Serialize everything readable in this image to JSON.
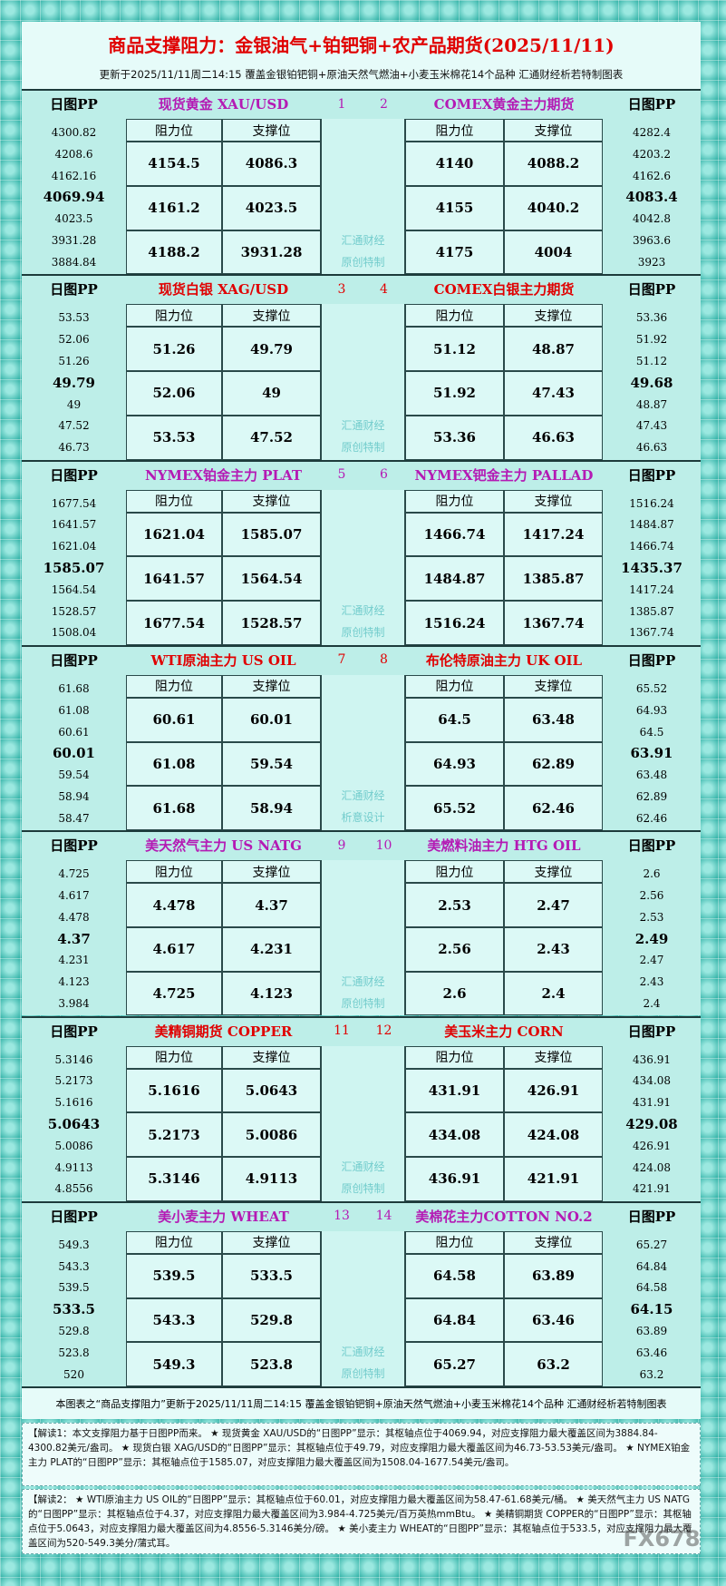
{
  "header": {
    "title": "商品支撑阻力：金银油气+铂钯铜+农产品期货(2025/11/11)",
    "subtitle": "更新于2025/11/11周二14:15 覆盖金银铂钯铜+原油天然气燃油+小麦玉米棉花14个品种 汇通财经析若特制图表"
  },
  "blocks": [
    {
      "watermark": [
        "汇通财经",
        "原创特制"
      ],
      "left": {
        "pp_label": "日图PP",
        "name": "现货黄金 XAU/USD",
        "index": "1",
        "res_label": "阻力位",
        "sup_label": "支撑位",
        "pp": [
          "4300.82",
          "4208.6",
          "4162.16",
          "4069.94",
          "4023.5",
          "3931.28",
          "3884.84"
        ],
        "resistance": [
          "4154.5",
          "4161.2",
          "4188.2"
        ],
        "support": [
          "4086.3",
          "4023.5",
          "3931.28"
        ]
      },
      "right": {
        "pp_label": "日图PP",
        "name": "COMEX黄金主力期货",
        "index": "2",
        "res_label": "阻力位",
        "sup_label": "支撑位",
        "pp": [
          "4282.4",
          "4203.2",
          "4162.6",
          "4083.4",
          "4042.8",
          "3963.6",
          "3923"
        ],
        "resistance": [
          "4140",
          "4155",
          "4175"
        ],
        "support": [
          "4088.2",
          "4040.2",
          "4004"
        ]
      }
    },
    {
      "watermark": [
        "汇通财经",
        "原创特制"
      ],
      "left": {
        "pp_label": "日图PP",
        "name": "现货白银 XAG/USD",
        "index": "3",
        "res_label": "阻力位",
        "sup_label": "支撑位",
        "pp": [
          "53.53",
          "52.06",
          "51.26",
          "49.79",
          "49",
          "47.52",
          "46.73"
        ],
        "resistance": [
          "51.26",
          "52.06",
          "53.53"
        ],
        "support": [
          "49.79",
          "49",
          "47.52"
        ]
      },
      "right": {
        "pp_label": "日图PP",
        "name": "COMEX白银主力期货",
        "index": "4",
        "res_label": "阻力位",
        "sup_label": "支撑位",
        "pp": [
          "53.36",
          "51.92",
          "51.12",
          "49.68",
          "48.87",
          "47.43",
          "46.63"
        ],
        "resistance": [
          "51.12",
          "51.92",
          "53.36"
        ],
        "support": [
          "48.87",
          "47.43",
          "46.63"
        ]
      }
    },
    {
      "watermark": [
        "汇通财经",
        "原创特制"
      ],
      "left": {
        "pp_label": "日图PP",
        "name": "NYMEX铂金主力 PLAT",
        "index": "5",
        "res_label": "阻力位",
        "sup_label": "支撑位",
        "pp": [
          "1677.54",
          "1641.57",
          "1621.04",
          "1585.07",
          "1564.54",
          "1528.57",
          "1508.04"
        ],
        "resistance": [
          "1621.04",
          "1641.57",
          "1677.54"
        ],
        "support": [
          "1585.07",
          "1564.54",
          "1528.57"
        ]
      },
      "right": {
        "pp_label": "日图PP",
        "name": "NYMEX钯金主力 PALLAD",
        "index": "6",
        "res_label": "阻力位",
        "sup_label": "支撑位",
        "pp": [
          "1516.24",
          "1484.87",
          "1466.74",
          "1435.37",
          "1417.24",
          "1385.87",
          "1367.74"
        ],
        "resistance": [
          "1466.74",
          "1484.87",
          "1516.24"
        ],
        "support": [
          "1417.24",
          "1385.87",
          "1367.74"
        ]
      }
    },
    {
      "watermark": [
        "汇通财经",
        "析意设计"
      ],
      "left": {
        "pp_label": "日图PP",
        "name": "WTI原油主力 US OIL",
        "index": "7",
        "res_label": "阻力位",
        "sup_label": "支撑位",
        "pp": [
          "61.68",
          "61.08",
          "60.61",
          "60.01",
          "59.54",
          "58.94",
          "58.47"
        ],
        "resistance": [
          "60.61",
          "61.08",
          "61.68"
        ],
        "support": [
          "60.01",
          "59.54",
          "58.94"
        ]
      },
      "right": {
        "pp_label": "日图PP",
        "name": "布伦特原油主力 UK OIL",
        "index": "8",
        "res_label": "阻力位",
        "sup_label": "支撑位",
        "pp": [
          "65.52",
          "64.93",
          "64.5",
          "63.91",
          "63.48",
          "62.89",
          "62.46"
        ],
        "resistance": [
          "64.5",
          "64.93",
          "65.52"
        ],
        "support": [
          "63.48",
          "62.89",
          "62.46"
        ]
      }
    },
    {
      "watermark": [
        "汇通财经",
        "原创特制"
      ],
      "left": {
        "pp_label": "日图PP",
        "name": "美天然气主力 US NATG",
        "index": "9",
        "res_label": "阻力位",
        "sup_label": "支撑位",
        "pp": [
          "4.725",
          "4.617",
          "4.478",
          "4.37",
          "4.231",
          "4.123",
          "3.984"
        ],
        "resistance": [
          "4.478",
          "4.617",
          "4.725"
        ],
        "support": [
          "4.37",
          "4.231",
          "4.123"
        ]
      },
      "right": {
        "pp_label": "日图PP",
        "name": "美燃料油主力 HTG OIL",
        "index": "10",
        "res_label": "阻力位",
        "sup_label": "支撑位",
        "pp": [
          "2.6",
          "2.56",
          "2.53",
          "2.49",
          "2.47",
          "2.43",
          "2.4"
        ],
        "resistance": [
          "2.53",
          "2.56",
          "2.6"
        ],
        "support": [
          "2.47",
          "2.43",
          "2.4"
        ]
      }
    },
    {
      "watermark": [
        "汇通财经",
        "原创特制"
      ],
      "left": {
        "pp_label": "日图PP",
        "name": "美精铜期货 COPPER",
        "index": "11",
        "res_label": "阻力位",
        "sup_label": "支撑位",
        "pp": [
          "5.3146",
          "5.2173",
          "5.1616",
          "5.0643",
          "5.0086",
          "4.9113",
          "4.8556"
        ],
        "resistance": [
          "5.1616",
          "5.2173",
          "5.3146"
        ],
        "support": [
          "5.0643",
          "5.0086",
          "4.9113"
        ]
      },
      "right": {
        "pp_label": "日图PP",
        "name": "美玉米主力 CORN",
        "index": "12",
        "res_label": "阻力位",
        "sup_label": "支撑位",
        "pp": [
          "436.91",
          "434.08",
          "431.91",
          "429.08",
          "426.91",
          "424.08",
          "421.91"
        ],
        "resistance": [
          "431.91",
          "434.08",
          "436.91"
        ],
        "support": [
          "426.91",
          "424.08",
          "421.91"
        ]
      }
    },
    {
      "watermark": [
        "汇通财经",
        "原创特制"
      ],
      "left": {
        "pp_label": "日图PP",
        "name": "美小麦主力 WHEAT",
        "index": "13",
        "res_label": "阻力位",
        "sup_label": "支撑位",
        "pp": [
          "549.3",
          "543.3",
          "539.5",
          "533.5",
          "529.8",
          "523.8",
          "520"
        ],
        "resistance": [
          "539.5",
          "543.3",
          "549.3"
        ],
        "support": [
          "533.5",
          "529.8",
          "523.8"
        ]
      },
      "right": {
        "pp_label": "日图PP",
        "name": "美棉花主力COTTON NO.2",
        "index": "14",
        "res_label": "阻力位",
        "sup_label": "支撑位",
        "pp": [
          "65.27",
          "64.84",
          "64.58",
          "64.15",
          "63.89",
          "63.46",
          "63.2"
        ],
        "resistance": [
          "64.58",
          "64.84",
          "65.27"
        ],
        "support": [
          "63.89",
          "63.46",
          "63.2"
        ]
      }
    }
  ],
  "footer": {
    "caption": "本图表之“商品支撑阻力”更新于2025/11/11周二14:15 覆盖金银铂钯铜+原油天然气燃油+小麦玉米棉花14个品种 汇通财经析若特制图表",
    "notes": [
      "【解读1：本文支撑阻力基于日图PP而来。 ★ 现货黄金 XAU/USD的“日图PP”显示：其枢轴点位于4069.94，对应支撑阻力最大覆盖区间为3884.84-4300.82美元/盎司。 ★ 现货白银 XAG/USD的“日图PP”显示：其枢轴点位于49.79，对应支撑阻力最大覆盖区间为46.73-53.53美元/盎司。 ★ NYMEX铂金主力 PLAT的“日图PP”显示：其枢轴点位于1585.07，对应支撑阻力最大覆盖区间为1508.04-1677.54美元/盎司。",
      "【解读2： ★ WTI原油主力 US OIL的“日图PP”显示：其枢轴点位于60.01，对应支撑阻力最大覆盖区间为58.47-61.68美元/桶。 ★ 美天然气主力 US NATG的“日图PP”显示：其枢轴点位于4.37，对应支撑阻力最大覆盖区间为3.984-4.725美元/百万英热mmBtu。 ★ 美精铜期货 COPPER的“日图PP”显示：其枢轴点位于5.0643，对应支撑阻力最大覆盖区间为4.8556-5.3146美分/磅。 ★ 美小麦主力 WHEAT的“日图PP”显示：其枢轴点位于533.5，对应支撑阻力最大覆盖区间为520-549.3美分/蒲式耳。"
    ],
    "watermark": "FX678"
  }
}
